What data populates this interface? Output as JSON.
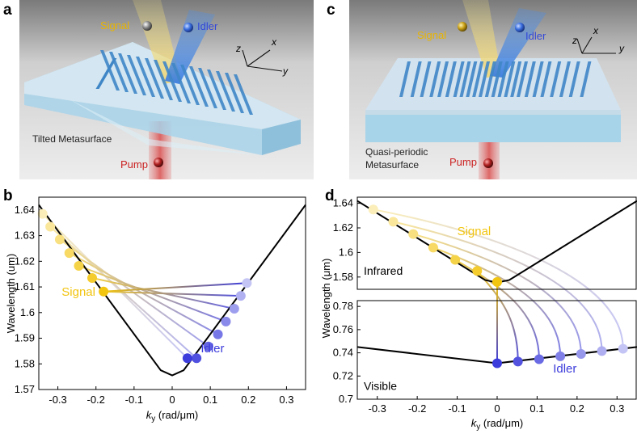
{
  "panels": {
    "a": {
      "label": "a",
      "signal": "Signal",
      "idler": "Idler",
      "pump": "Pump",
      "caption": "Tilted Metasurface",
      "axes": {
        "x": "x",
        "y": "y",
        "z": "z"
      }
    },
    "b": {
      "label": "b"
    },
    "c": {
      "label": "c",
      "signal": "Signal",
      "idler": "Idler",
      "pump": "Pump",
      "caption_line1": "Quasi-periodic",
      "caption_line2": "Metasurface",
      "axes": {
        "x": "x",
        "y": "y",
        "z": "z"
      }
    },
    "d": {
      "label": "d"
    }
  },
  "colors": {
    "signal": "#f2c511",
    "idler": "#3c3cdc",
    "pump": "#cc2222",
    "curve": "#000000"
  },
  "chart_data": [
    {
      "id": "b",
      "type": "scatter",
      "xlabel_main": "k",
      "xlabel_sub": "y",
      "xlabel_unit": " (rad/μm)",
      "ylabel": "Wavelength (um)",
      "xlim": [
        -0.35,
        0.35
      ],
      "ylim": [
        1.57,
        1.645
      ],
      "xticks": [
        -0.3,
        -0.2,
        -0.1,
        0,
        0.1,
        0.2,
        0.3
      ],
      "xtick_labels": [
        "-0.3",
        "-0.2",
        "-0.1",
        "0",
        "0.1",
        "0.2",
        "0.3"
      ],
      "yticks": [
        1.57,
        1.58,
        1.59,
        1.6,
        1.61,
        1.62,
        1.63,
        1.64
      ],
      "ytick_labels": [
        "1.57",
        "1.58",
        "1.59",
        "1.6",
        "1.61",
        "1.62",
        "1.63",
        "1.64"
      ],
      "curve": {
        "x": [
          -0.35,
          -0.03,
          0,
          0.03,
          0.35
        ],
        "y": [
          1.642,
          1.5775,
          1.5755,
          1.5775,
          1.642
        ]
      },
      "signal_points": {
        "x": [
          -0.34,
          -0.32,
          -0.295,
          -0.27,
          -0.245,
          -0.21,
          -0.18
        ],
        "y": [
          1.6385,
          1.6335,
          1.6285,
          1.6232,
          1.6182,
          1.6135,
          1.6082
        ]
      },
      "idler_points": {
        "x": [
          0.196,
          0.18,
          0.163,
          0.141,
          0.12,
          0.095,
          0.064,
          0.04
        ],
        "y": [
          1.6115,
          1.6065,
          1.6015,
          1.5965,
          1.5915,
          1.5868,
          1.5822,
          1.5822
        ]
      },
      "signal_label": "Signal",
      "idler_label": "Idler"
    },
    {
      "id": "d",
      "type": "scatter",
      "xlabel_main": "k",
      "xlabel_sub": "y",
      "xlabel_unit": " (rad/μm)",
      "ylabel": "Wavelength (μm)",
      "xlim": [
        -0.35,
        0.35
      ],
      "xticks": [
        -0.3,
        -0.2,
        -0.1,
        0,
        0.1,
        0.2,
        0.3
      ],
      "xtick_labels": [
        "-0.3",
        "-0.2",
        "-0.1",
        "0",
        "0.1",
        "0.2",
        "0.3"
      ],
      "top": {
        "ylim": [
          1.57,
          1.645
        ],
        "yticks": [
          1.58,
          1.6,
          1.62,
          1.64
        ],
        "ytick_labels": [
          "1.58",
          "1.6",
          "1.62",
          "1.64"
        ],
        "region_label": "Infrared",
        "curve": {
          "x": [
            -0.35,
            -0.03,
            0,
            0.03,
            0.35
          ],
          "y": [
            1.642,
            1.5775,
            1.5755,
            1.5775,
            1.642
          ]
        },
        "signal_points": {
          "x": [
            -0.31,
            -0.26,
            -0.21,
            -0.16,
            -0.105,
            -0.05,
            0.0
          ],
          "y": [
            1.635,
            1.625,
            1.615,
            1.604,
            1.594,
            1.585,
            1.576
          ]
        },
        "signal_label": "Signal"
      },
      "bottom": {
        "ylim": [
          0.7,
          0.785
        ],
        "yticks": [
          0.7,
          0.72,
          0.74,
          0.76,
          0.78
        ],
        "ytick_labels": [
          "0.7",
          "0.72",
          "0.74",
          "0.76",
          "0.78"
        ],
        "region_label": "Visible",
        "curve": {
          "x": [
            -0.35,
            0,
            0.35
          ],
          "y": [
            0.745,
            0.731,
            0.745
          ]
        },
        "idler_points": {
          "x": [
            0.0,
            0.052,
            0.105,
            0.158,
            0.21,
            0.262,
            0.315
          ],
          "y": [
            0.731,
            0.7325,
            0.7345,
            0.737,
            0.739,
            0.7415,
            0.7435
          ]
        },
        "idler_label": "Idler"
      }
    }
  ]
}
